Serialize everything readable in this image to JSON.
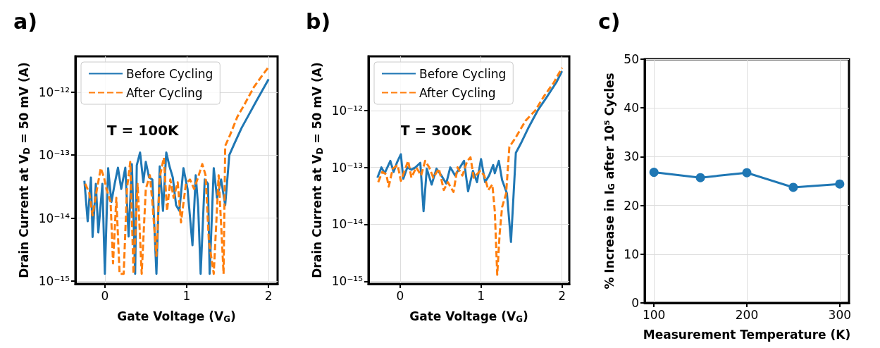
{
  "chart_data": [
    {
      "type": "line",
      "title": "a)",
      "xlabel": "Gate Voltage (V$_{G}$)",
      "ylabel": "Drain Current at V$_{D}$ = 50 mV (A)",
      "annotations": [
        "T = 100K"
      ],
      "log": "y",
      "grid": true,
      "legend": "top left",
      "xlim": [
        -0.36,
        2.11
      ],
      "xticks": [
        0,
        1,
        2
      ],
      "ylim": [
        9e-16,
        3.7e-12
      ],
      "yticks": [
        {
          "value": 1e-15,
          "label": "10⁻¹⁵"
        },
        {
          "value": 1e-14,
          "label": "10⁻¹⁴"
        },
        {
          "value": 1e-13,
          "label": "10⁻¹³"
        },
        {
          "value": 1e-12,
          "label": "10⁻¹²"
        }
      ],
      "series": [
        {
          "name": "Before Cycling",
          "color": "#1f77b4",
          "line_style": "solid",
          "x": [
            -0.25,
            -0.21,
            -0.17,
            -0.15,
            -0.11,
            -0.08,
            -0.03,
            0.0,
            0.04,
            0.08,
            0.12,
            0.16,
            0.2,
            0.25,
            0.29,
            0.33,
            0.37,
            0.39,
            0.43,
            0.47,
            0.5,
            0.54,
            0.58,
            0.63,
            0.67,
            0.71,
            0.75,
            0.79,
            0.83,
            0.87,
            0.91,
            0.96,
            1.01,
            1.07,
            1.11,
            1.14,
            1.17,
            1.22,
            1.26,
            1.28,
            1.33,
            1.37,
            1.42,
            1.47,
            1.52,
            1.59,
            1.67,
            1.76,
            1.85,
            1.93,
            2.0
          ],
          "values": [
            3.9e-14,
            8.9e-15,
            4.4e-14,
            5e-15,
            3.5e-14,
            5.9e-15,
            3.5e-14,
            1.3e-15,
            6.2e-14,
            1.8e-14,
            3.5e-14,
            6.3e-14,
            2.9e-14,
            6.3e-14,
            5.1e-15,
            7.2e-14,
            1.3e-15,
            6.9e-14,
            1.1e-13,
            3.7e-14,
            7.8e-14,
            4.4e-14,
            4.1e-14,
            1.3e-15,
            6.6e-14,
            1.3e-14,
            1.1e-13,
            6.6e-14,
            4.4e-14,
            1.6e-14,
            1.3e-14,
            6.2e-14,
            2.9e-14,
            3.7e-15,
            4.8e-14,
            1.5e-14,
            1.3e-15,
            4.1e-14,
            3.5e-14,
            1.3e-15,
            6.2e-14,
            2.1e-14,
            4.1e-14,
            1.6e-14,
            1e-13,
            1.6e-13,
            2.7e-13,
            4.4e-13,
            7.2e-13,
            1.1e-12,
            1.6e-12
          ]
        },
        {
          "name": "After Cycling",
          "color": "#ff7f0e",
          "line_style": "dashed",
          "x": [
            -0.24,
            -0.19,
            -0.15,
            -0.11,
            -0.05,
            -0.01,
            0.02,
            0.07,
            0.1,
            0.14,
            0.18,
            0.23,
            0.27,
            0.31,
            0.35,
            0.4,
            0.45,
            0.5,
            0.55,
            0.58,
            0.63,
            0.67,
            0.72,
            0.76,
            0.8,
            0.84,
            0.89,
            0.93,
            0.99,
            1.04,
            1.09,
            1.13,
            1.19,
            1.23,
            1.27,
            1.33,
            1.39,
            1.45,
            1.47,
            1.53,
            1.62,
            1.7,
            1.82,
            1.93,
            2.0
          ],
          "values": [
            3.5e-14,
            2.5e-14,
            1.1e-14,
            2.3e-14,
            6.2e-14,
            4.4e-14,
            2.9e-14,
            1.8e-14,
            1.9e-15,
            2.1e-14,
            1.3e-15,
            1.3e-15,
            2.9e-14,
            7.8e-14,
            1.3e-15,
            3.5e-14,
            1.3e-15,
            2.9e-14,
            4.8e-14,
            1.8e-14,
            2.5e-15,
            4.4e-14,
            9.1e-14,
            1.3e-14,
            4.1e-14,
            2.1e-14,
            3.7e-14,
            8.5e-15,
            3.5e-14,
            4.1e-14,
            2.9e-14,
            4.1e-14,
            7.2e-14,
            4.8e-14,
            4.4e-15,
            1.3e-15,
            4.8e-14,
            1.3e-15,
            1.4e-13,
            2.1e-13,
            4.1e-13,
            6.2e-13,
            1.2e-12,
            1.9e-12,
            2.5e-12
          ]
        }
      ]
    },
    {
      "type": "line",
      "title": "b)",
      "xlabel": "Gate Voltage (V$_{G}$)",
      "ylabel": "Drain Current at V$_{D}$ = 50 mV (A)",
      "annotations": [
        "T = 300K"
      ],
      "log": "y",
      "grid": true,
      "legend": "top left",
      "xlim": [
        -0.39,
        2.09
      ],
      "xticks": [
        0,
        1,
        2
      ],
      "ylim": [
        9e-16,
        8.9e-12
      ],
      "yticks": [
        {
          "value": 1e-15,
          "label": "10⁻¹⁵"
        },
        {
          "value": 1e-14,
          "label": "10⁻¹⁴"
        },
        {
          "value": 1e-13,
          "label": "10⁻¹³"
        },
        {
          "value": 1e-12,
          "label": "10⁻¹²"
        }
      ],
      "series": [
        {
          "name": "Before Cycling",
          "color": "#1f77b4",
          "line_style": "solid",
          "x": [
            -0.28,
            -0.23,
            -0.19,
            -0.12,
            -0.08,
            -0.04,
            0.01,
            0.04,
            0.09,
            0.14,
            0.19,
            0.25,
            0.29,
            0.33,
            0.39,
            0.45,
            0.51,
            0.57,
            0.62,
            0.68,
            0.74,
            0.79,
            0.84,
            0.9,
            0.95,
            1.0,
            1.05,
            1.1,
            1.15,
            1.17,
            1.22,
            1.26,
            1.32,
            1.37,
            1.43,
            1.49,
            1.58,
            1.7,
            1.81,
            1.93,
            2.0
          ],
          "values": [
            6.6e-14,
            1e-13,
            7.9e-14,
            1.3e-13,
            8.3e-14,
            1.2e-13,
            1.7e-13,
            6.3e-14,
            1e-13,
            9.1e-14,
            1e-13,
            1.2e-13,
            1.7e-14,
            9.5e-14,
            5e-14,
            9.5e-14,
            7.2e-14,
            5.2e-14,
            1e-13,
            7.2e-14,
            1e-13,
            1.3e-13,
            3.8e-14,
            8.7e-14,
            5.5e-14,
            1.4e-13,
            5.5e-14,
            7.2e-14,
            1.1e-13,
            7.9e-14,
            1.3e-13,
            6e-14,
            3.5e-14,
            4.9e-15,
            1.8e-13,
            2.6e-13,
            4.8e-13,
            1e-12,
            1.7e-12,
            3.1e-12,
            4.9e-12
          ]
        },
        {
          "name": "After Cycling",
          "color": "#ff7f0e",
          "line_style": "dashed",
          "x": [
            -0.27,
            -0.22,
            -0.17,
            -0.14,
            -0.09,
            -0.03,
            0.01,
            0.1,
            0.14,
            0.2,
            0.26,
            0.31,
            0.36,
            0.41,
            0.48,
            0.54,
            0.59,
            0.66,
            0.71,
            0.77,
            0.83,
            0.87,
            0.91,
            0.99,
            1.04,
            1.09,
            1.14,
            1.17,
            1.2,
            1.23,
            1.26,
            1.31,
            1.35,
            1.42,
            1.55,
            1.67,
            1.78,
            1.9,
            2.0
          ],
          "values": [
            5.5e-14,
            8.3e-14,
            7.6e-14,
            4.6e-14,
            9.5e-14,
            1.1e-13,
            5.8e-14,
            1.3e-13,
            6.6e-14,
            1e-13,
            7.2e-14,
            1.3e-13,
            1e-13,
            6.6e-14,
            9.5e-14,
            4e-14,
            5.5e-14,
            3.7e-14,
            1e-13,
            7.2e-14,
            1.3e-13,
            1.5e-13,
            6.6e-14,
            8.7e-14,
            7.2e-14,
            4e-14,
            5e-14,
            1.7e-14,
            1.3e-15,
            6.8e-15,
            2e-14,
            3.5e-14,
            2.3e-13,
            3.2e-13,
            6.6e-13,
            1e-12,
            1.8e-12,
            3.1e-12,
            5.6e-12
          ]
        }
      ]
    },
    {
      "type": "line",
      "title": "c)",
      "xlabel": "Measurement Temperature (K)",
      "ylabel": "% Increase in I$_{G}$ after 10⁵ Cycles",
      "grid": true,
      "marker": "circle",
      "xlim": [
        90,
        310
      ],
      "xticks": [
        100,
        200,
        300
      ],
      "ylim": [
        0,
        50
      ],
      "yticks": [
        0,
        10,
        20,
        30,
        40,
        50
      ],
      "x": [
        100,
        150,
        200,
        250,
        300
      ],
      "values": [
        26.8,
        25.7,
        26.7,
        23.7,
        24.4
      ],
      "color": "#1f77b4"
    }
  ]
}
